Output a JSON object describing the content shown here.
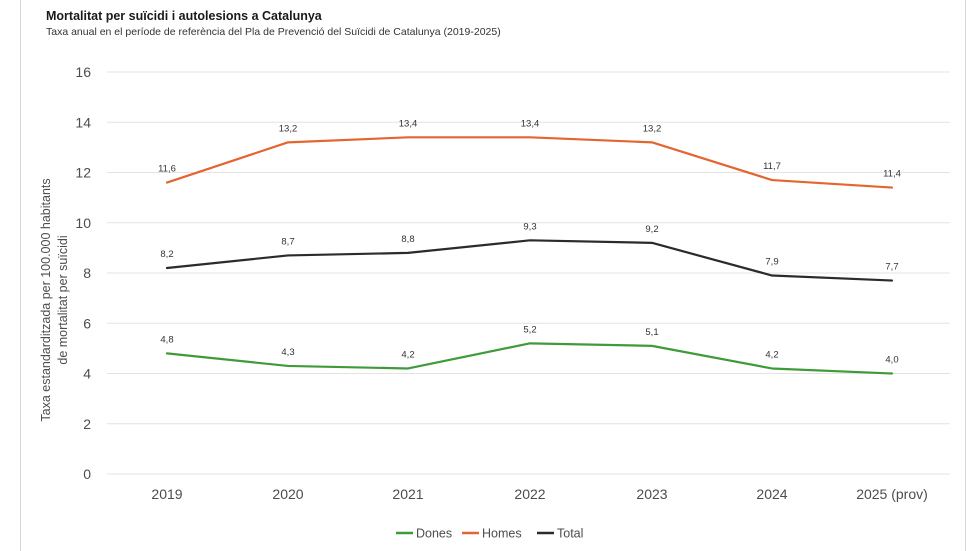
{
  "chart_data": {
    "type": "line",
    "title": "Mortalitat per suïcidi i autolesions a Catalunya",
    "subtitle": "Taxa anual en el període de referència del Pla de Prevenció del Suïcidi de Catalunya (2019-2025)",
    "ylabel_line1": "Taxa estandarditzada per 100.000 habitants",
    "ylabel_line2": "de mortalitat per suïcidi",
    "xlabel": "",
    "categories": [
      "2019",
      "2020",
      "2021",
      "2022",
      "2023",
      "2024",
      "2025 (prov)"
    ],
    "ylim": [
      0,
      16
    ],
    "yticks": [
      "0",
      "2",
      "4",
      "6",
      "8",
      "10",
      "12",
      "14",
      "16"
    ],
    "grid": true,
    "legend_position": "bottom",
    "series": [
      {
        "name": "Dones",
        "color": "#3f9b39",
        "values": [
          4.8,
          4.3,
          4.2,
          5.2,
          5.1,
          4.2,
          4.0
        ],
        "labels": [
          "4,8",
          "4,3",
          "4,2",
          "5,2",
          "5,1",
          "4,2",
          "4,0"
        ]
      },
      {
        "name": "Homes",
        "color": "#e4652f",
        "values": [
          11.6,
          13.2,
          13.4,
          13.4,
          13.2,
          11.7,
          11.4
        ],
        "labels": [
          "11,6",
          "13,2",
          "13,4",
          "13,4",
          "13,2",
          "11,7",
          "11,4"
        ]
      },
      {
        "name": "Total",
        "color": "#2b2b2b",
        "values": [
          8.2,
          8.7,
          8.8,
          9.3,
          9.2,
          7.9,
          7.7
        ],
        "labels": [
          "8,2",
          "8,7",
          "8,8",
          "9,3",
          "9,2",
          "7,9",
          "7,7"
        ]
      }
    ]
  }
}
